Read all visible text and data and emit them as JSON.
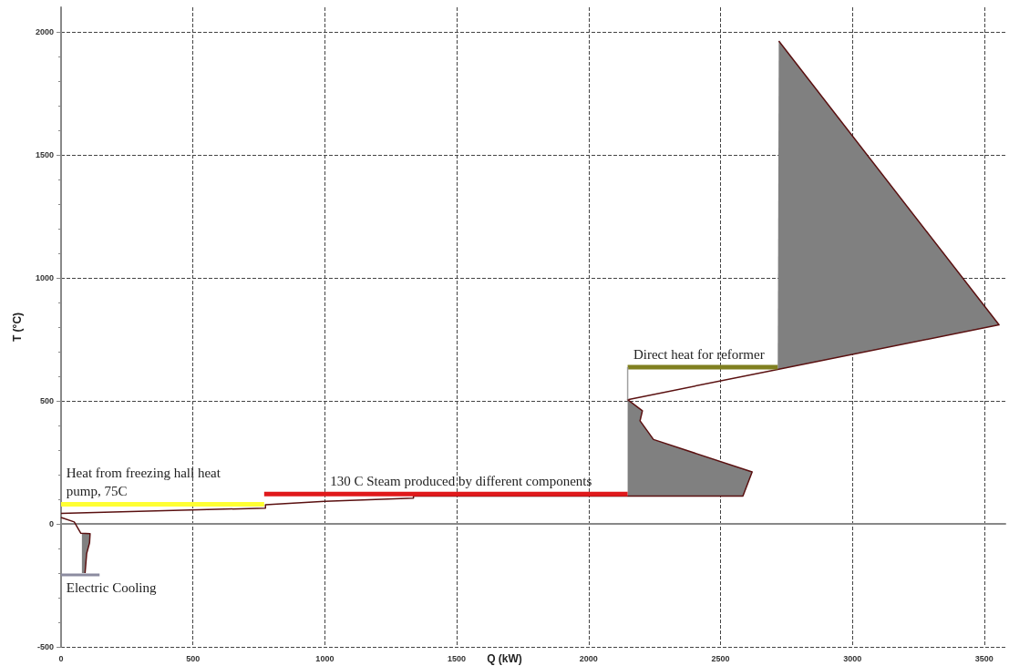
{
  "chart_data": {
    "type": "line",
    "xlabel": "Q (kW)",
    "ylabel": "T (°C)",
    "xlim": [
      0,
      3580
    ],
    "ylim": [
      -500,
      2100
    ],
    "xticks": [
      0,
      500,
      1000,
      1500,
      2000,
      2500,
      3000,
      3500
    ],
    "yticks": [
      -500,
      0,
      500,
      1000,
      1500,
      2000
    ],
    "grid": true,
    "line_style": "solid",
    "marker": "none",
    "series": [
      {
        "type": "area",
        "color": "#808080",
        "x": [
          2717,
          3556,
          2721
        ],
        "values": [
          628,
          809,
          1963
        ]
      },
      {
        "type": "area",
        "color": "#808080",
        "x": [
          2148,
          2148,
          2585,
          2620,
          2246,
          2195,
          2204
        ],
        "values": [
          505,
          113,
          113,
          211,
          343,
          419,
          460
        ]
      },
      {
        "type": "area",
        "color": "#808080",
        "x": [
          79,
          110,
          108,
          97,
          91,
          79
        ],
        "values": [
          -40,
          -40,
          -77,
          -121,
          -200,
          -200
        ]
      },
      {
        "color": "#5a1010",
        "x": [
          0,
          775,
          775,
          1000,
          1336,
          1336,
          2585,
          2620,
          2246,
          2195,
          2204,
          2148,
          2717,
          3556,
          2721,
          2721
        ],
        "values": [
          43,
          64,
          78,
          92,
          105,
          113,
          113,
          211,
          343,
          419,
          460,
          505,
          628,
          809,
          1963,
          1963
        ]
      },
      {
        "color": "#5a1010",
        "x": [
          0,
          50,
          75,
          110,
          108,
          97,
          91
        ],
        "values": [
          26,
          8,
          -38,
          -40,
          -77,
          -121,
          -200
        ]
      },
      {
        "color": "#ffff33",
        "x": [
          0,
          770
        ],
        "values": [
          80,
          80
        ]
      },
      {
        "color": "#e0191b",
        "x": [
          770,
          2148
        ],
        "values": [
          121,
          121
        ]
      },
      {
        "color": "#808020",
        "x": [
          2148,
          2717
        ],
        "values": [
          637,
          637
        ]
      },
      {
        "color": "#a0a0a0",
        "x": [
          2148,
          2148
        ],
        "values": [
          505,
          637
        ]
      },
      {
        "color": "#8c8ca0",
        "x": [
          0,
          146
        ],
        "values": [
          -207,
          -207
        ]
      }
    ],
    "annotations": [
      {
        "text": "Heat from freezing hall heat\npump, 75C",
        "x": 20,
        "y": 80
      },
      {
        "text": "130 C Steam produced by different components",
        "x": 1020,
        "y": 121
      },
      {
        "text": "Direct heat for reformer",
        "x": 2170,
        "y": 637
      },
      {
        "text": "Electric Cooling",
        "x": 20,
        "y": -207
      }
    ]
  }
}
